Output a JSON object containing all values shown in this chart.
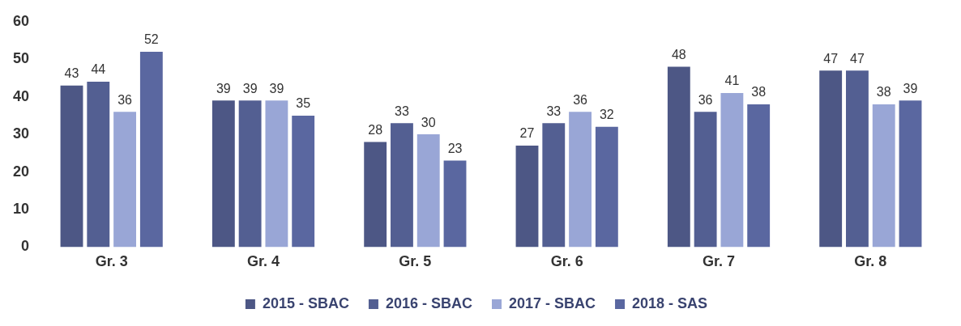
{
  "chart_data": {
    "type": "bar",
    "categories": [
      "Gr. 3",
      "Gr. 4",
      "Gr. 5",
      "Gr. 6",
      "Gr. 7",
      "Gr. 8"
    ],
    "series": [
      {
        "name": "2015 - SBAC",
        "color": "#4d5785",
        "values": [
          43,
          39,
          28,
          27,
          48,
          47
        ]
      },
      {
        "name": "2016 - SBAC",
        "color": "#535f92",
        "values": [
          44,
          39,
          33,
          33,
          36,
          47
        ]
      },
      {
        "name": "2017 - SBAC",
        "color": "#99a6d6",
        "values": [
          36,
          39,
          30,
          36,
          41,
          38
        ]
      },
      {
        "name": "2018 - SAS",
        "color": "#5a67a0",
        "values": [
          52,
          35,
          23,
          32,
          38,
          39
        ]
      }
    ],
    "ylim": [
      0,
      60
    ],
    "yticks": [
      0,
      10,
      20,
      30,
      40,
      50,
      60
    ],
    "grid": false,
    "legend": "bottom",
    "data_labels": true
  }
}
